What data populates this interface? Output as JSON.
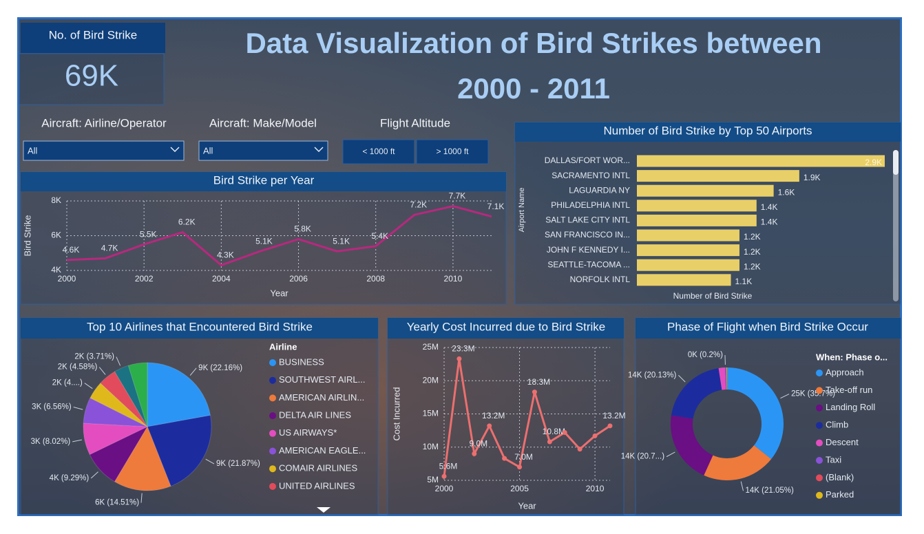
{
  "header": {
    "title": "Data Visualization of Bird Strikes between 2000 - 2011"
  },
  "kpi": {
    "label": "No. of Bird Strike",
    "value": "69K"
  },
  "filters": [
    {
      "label": "Aircraft: Airline/Operator",
      "value": "All"
    },
    {
      "label": "Aircraft: Make/Model",
      "value": "All"
    },
    {
      "label": "Flight Altitude",
      "options": [
        "< 1000 ft",
        "> 1000 ft"
      ]
    }
  ],
  "chart_data": [
    {
      "type": "line",
      "title": "Bird Strike per Year",
      "x_label": "Year",
      "y_label": "Bird Strike",
      "x": [
        2000,
        2001,
        2002,
        2003,
        2004,
        2005,
        2006,
        2007,
        2008,
        2009,
        2010,
        2011
      ],
      "values": [
        4600,
        4700,
        5500,
        6200,
        4300,
        5100,
        5800,
        5100,
        5400,
        7200,
        7700,
        7100
      ],
      "value_labels": [
        "4.6K",
        "4.7K",
        "5.5K",
        "6.2K",
        "4.3K",
        "5.1K",
        "5.8K",
        "5.1K",
        "5.4K",
        "7.2K",
        "7.7K",
        "7.1K"
      ],
      "color": "#b8287e",
      "markers": false,
      "xlim": [
        2000,
        2011
      ],
      "xticks": [
        2000,
        2002,
        2004,
        2006,
        2008,
        2010
      ],
      "ylim": [
        4000,
        8000
      ],
      "yticks": [
        {
          "value": 4000,
          "label": "4K"
        },
        {
          "value": 6000,
          "label": "6K"
        },
        {
          "value": 8000,
          "label": "8K"
        }
      ],
      "grid": true
    },
    {
      "type": "bar",
      "orientation": "horizontal",
      "title": "Number of Bird Strike by Top 50 Airports",
      "x_label": "Number of Bird Strike",
      "y_label": "Airport Name",
      "categories": [
        "DALLAS/FORT WOR...",
        "SACRAMENTO INTL",
        "LAGUARDIA NY",
        "PHILADELPHIA INTL",
        "SALT LAKE CITY INTL",
        "SAN FRANCISCO IN...",
        "JOHN F KENNEDY I...",
        "SEATTLE-TACOMA ...",
        "NORFOLK INTL"
      ],
      "values": [
        2900,
        1900,
        1600,
        1400,
        1400,
        1200,
        1200,
        1200,
        1100
      ],
      "value_labels": [
        "2.9K",
        "1.9K",
        "1.6K",
        "1.4K",
        "1.4K",
        "1.2K",
        "1.2K",
        "1.2K",
        "1.1K"
      ],
      "color": "#e9cf67"
    },
    {
      "type": "pie",
      "title": "Top 10 Airlines that Encountered Bird Strike",
      "legend_title": "Airline",
      "categories": [
        "BUSINESS",
        "SOUTHWEST AIRL...",
        "AMERICAN AIRLIN...",
        "DELTA AIR LINES",
        "US AIRWAYS*",
        "AMERICAN EAGLE...",
        "COMAIR AIRLINES",
        "UNITED AIRLINES",
        null,
        null
      ],
      "values": [
        22.16,
        21.87,
        14.51,
        9.29,
        8.02,
        6.56,
        4.5,
        4.58,
        3.71,
        4.8
      ],
      "value_labels": [
        "9K (22.16%)",
        "9K (21.87%)",
        "6K (14.51%)",
        "4K (9.29%)",
        "3K (8.02%)",
        "3K (6.56%)",
        "2K (4....)",
        "2K (4.58%)",
        "2K (3.71%)",
        null
      ],
      "colors": [
        "#2b95f5",
        "#1c2c9e",
        "#ee7a3c",
        "#6a0f84",
        "#e44dbf",
        "#8a52d8",
        "#dfb81c",
        "#e24b5b",
        "#1b7282",
        "#2cae4b"
      ]
    },
    {
      "type": "line",
      "title": "Yearly Cost Incurred due to Bird Strike",
      "x_label": "Year",
      "y_label": "Cost Incurred",
      "x": [
        2000,
        2001,
        2002,
        2003,
        2004,
        2005,
        2006,
        2007,
        2008,
        2009,
        2010,
        2011
      ],
      "values": [
        5600000,
        23300000,
        9000000,
        13200000,
        8300000,
        7000000,
        18300000,
        10800000,
        12200000,
        9700000,
        11700000,
        13200000
      ],
      "value_labels": [
        "5.6M",
        "23.3M",
        "9.0M",
        "13.2M",
        null,
        "7.0M",
        "18.3M",
        "10.8M",
        null,
        null,
        null,
        "13.2M"
      ],
      "color": "#ec6f6f",
      "markers": true,
      "xlim": [
        2000,
        2011
      ],
      "xticks": [
        2000,
        2005,
        2010
      ],
      "ylim": [
        5000000,
        25000000
      ],
      "yticks": [
        {
          "value": 5000000,
          "label": "5M"
        },
        {
          "value": 10000000,
          "label": "10M"
        },
        {
          "value": 15000000,
          "label": "15M"
        },
        {
          "value": 20000000,
          "label": "20M"
        },
        {
          "value": 25000000,
          "label": "25M"
        }
      ],
      "grid": true
    },
    {
      "type": "donut",
      "title": "Phase of Flight when Bird Strike Occur",
      "legend_title": "When: Phase o...",
      "categories": [
        "Approach",
        "Take-off run",
        "Landing Roll",
        "Climb",
        "Descent",
        "Taxi",
        "(Blank)",
        "Parked"
      ],
      "values": [
        35.7,
        21.05,
        20.7,
        20.13,
        1.84,
        0.2,
        0.2,
        0.18
      ],
      "value_labels": [
        "25K (35.7%)",
        "14K (21.05%)",
        "14K (20.7...)",
        "14K (20.13%)",
        null,
        "0K (0.2%)",
        null,
        null
      ],
      "colors": [
        "#2b95f5",
        "#ee7a3c",
        "#6a0f84",
        "#1c2c9e",
        "#e44dbf",
        "#8a52d8",
        "#e24b5b",
        "#dfb81c"
      ]
    }
  ]
}
